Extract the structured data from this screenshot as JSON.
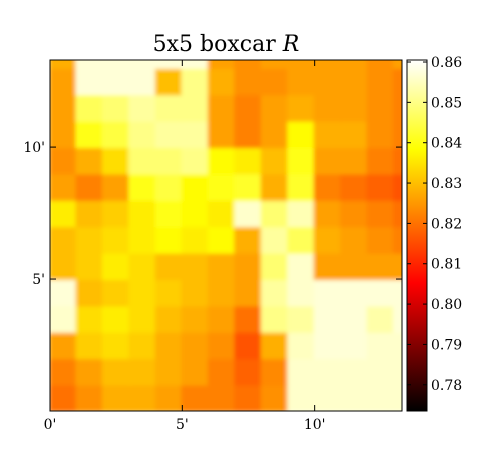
{
  "chart_data": {
    "type": "heatmap",
    "title": "5x5 boxcar",
    "title_symbol": "R",
    "x_ticks": [
      {
        "value": 0,
        "label": "0'"
      },
      {
        "value": 5,
        "label": "5'"
      },
      {
        "value": 10,
        "label": "10'"
      }
    ],
    "y_ticks": [
      {
        "value": 5,
        "label": "5'"
      },
      {
        "value": 10,
        "label": "10'"
      }
    ],
    "xlim": [
      0,
      13.3
    ],
    "ylim": [
      0,
      13.3
    ],
    "colormap": "hot",
    "colorbar": {
      "ticks": [
        "0.78",
        "0.79",
        "0.80",
        "0.81",
        "0.82",
        "0.83",
        "0.84",
        "0.85",
        "0.86"
      ],
      "tick_values": [
        0.78,
        0.79,
        0.8,
        0.81,
        0.82,
        0.83,
        0.84,
        0.85,
        0.86
      ],
      "range": [
        0.7735,
        0.8605
      ]
    },
    "grid": false,
    "cell_size": 1,
    "values": [
      [
        0.82,
        0.824,
        0.828,
        0.828,
        0.826,
        0.822,
        0.822,
        0.82,
        0.824,
        0.856,
        0.856,
        0.856,
        0.856,
        0.856
      ],
      [
        0.822,
        0.826,
        0.83,
        0.83,
        0.828,
        0.826,
        0.822,
        0.818,
        0.823,
        0.856,
        0.856,
        0.856,
        0.856,
        0.856
      ],
      [
        0.826,
        0.832,
        0.834,
        0.832,
        0.828,
        0.826,
        0.824,
        0.816,
        0.828,
        0.855,
        0.857,
        0.857,
        0.856,
        0.856
      ],
      [
        0.856,
        0.834,
        0.836,
        0.834,
        0.83,
        0.828,
        0.826,
        0.82,
        0.85,
        0.852,
        0.857,
        0.857,
        0.853,
        0.857
      ],
      [
        0.857,
        0.83,
        0.832,
        0.834,
        0.832,
        0.83,
        0.828,
        0.826,
        0.852,
        0.856,
        0.857,
        0.857,
        0.857,
        0.857
      ],
      [
        0.83,
        0.832,
        0.836,
        0.834,
        0.83,
        0.83,
        0.828,
        0.826,
        0.848,
        0.856,
        0.826,
        0.826,
        0.826,
        0.826
      ],
      [
        0.83,
        0.832,
        0.834,
        0.836,
        0.838,
        0.836,
        0.838,
        0.828,
        0.852,
        0.846,
        0.828,
        0.826,
        0.824,
        0.822
      ],
      [
        0.836,
        0.83,
        0.832,
        0.836,
        0.84,
        0.838,
        0.836,
        0.856,
        0.848,
        0.854,
        0.826,
        0.824,
        0.822,
        0.82
      ],
      [
        0.826,
        0.822,
        0.826,
        0.84,
        0.844,
        0.838,
        0.84,
        0.842,
        0.828,
        0.842,
        0.822,
        0.82,
        0.818,
        0.816
      ],
      [
        0.824,
        0.828,
        0.834,
        0.848,
        0.848,
        0.85,
        0.838,
        0.836,
        0.83,
        0.84,
        0.826,
        0.826,
        0.822,
        0.82
      ],
      [
        0.826,
        0.84,
        0.844,
        0.85,
        0.852,
        0.852,
        0.826,
        0.822,
        0.826,
        0.838,
        0.828,
        0.828,
        0.824,
        0.822
      ],
      [
        0.826,
        0.846,
        0.848,
        0.852,
        0.85,
        0.85,
        0.826,
        0.822,
        0.826,
        0.828,
        0.826,
        0.826,
        0.824,
        0.822
      ],
      [
        0.826,
        0.857,
        0.857,
        0.857,
        0.83,
        0.85,
        0.828,
        0.824,
        0.824,
        0.826,
        0.826,
        0.826,
        0.824,
        0.822
      ],
      [
        0.828,
        0.857,
        0.857,
        0.857,
        0.857,
        0.857,
        0.826,
        0.824,
        0.826,
        0.826,
        0.826,
        0.826,
        0.824,
        0.826
      ]
    ]
  }
}
